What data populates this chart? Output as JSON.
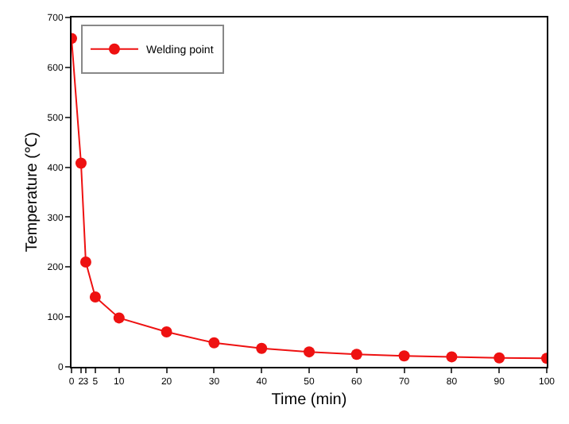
{
  "chart_data": {
    "type": "line",
    "xlabel": "Time (min)",
    "ylabel": "Temperature (℃)",
    "x": [
      0,
      2,
      3,
      5,
      10,
      20,
      30,
      40,
      50,
      60,
      70,
      80,
      90,
      100
    ],
    "series": [
      {
        "name": "Welding point",
        "color": "#ee1111",
        "values": [
          658,
          408,
          210,
          140,
          98,
          70,
          48,
          37,
          30,
          25,
          22,
          20,
          18,
          17
        ]
      }
    ],
    "xlim": [
      0,
      100
    ],
    "xticks": [
      0,
      2,
      3,
      5,
      10,
      20,
      30,
      40,
      50,
      60,
      70,
      80,
      90,
      100
    ],
    "ylim": [
      0,
      700
    ],
    "yticks": [
      0,
      100,
      200,
      300,
      400,
      500,
      600,
      700
    ],
    "legend": "top left",
    "marker": "circle",
    "line_style": "solid"
  }
}
